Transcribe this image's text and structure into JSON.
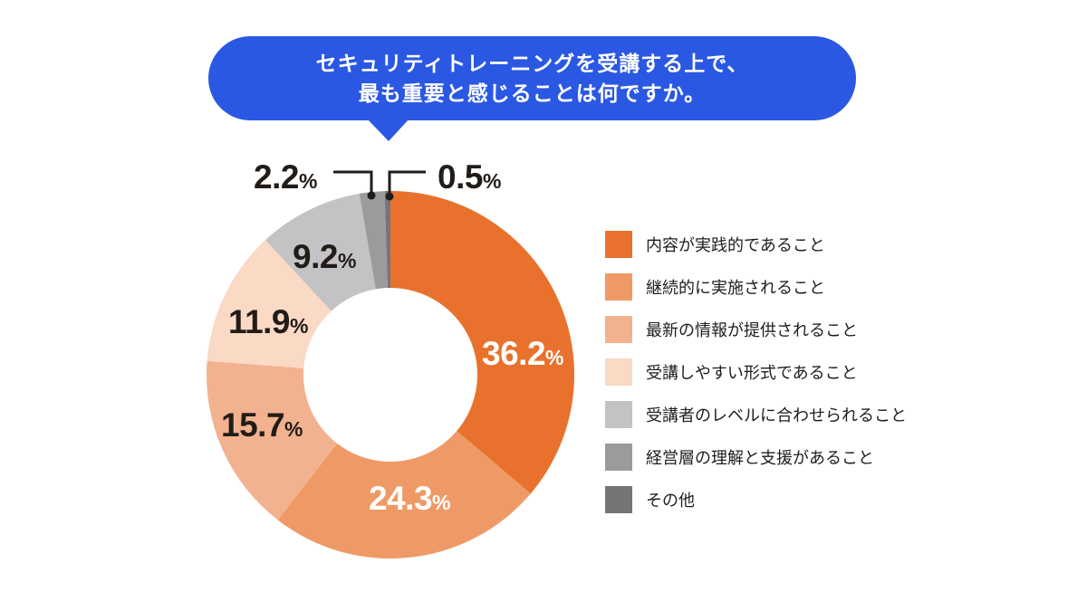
{
  "bubble": {
    "line1": "セキュリティトレーニングを受講する上で、",
    "line2": "最も重要と感じることは何ですか。"
  },
  "colors": {
    "bubble_blue": "#2B58E2",
    "leader_line": "#1D1D1D",
    "label_dark": "#221C18",
    "label_light": "#FFFFFF",
    "background": "#FFFFFF"
  },
  "chart_data": {
    "type": "pie",
    "subtype": "donut",
    "title": "セキュリティトレーニングを受講する上で、最も重要と感じることは何ですか。",
    "legend_position": "right",
    "start_angle": "12-o-clock",
    "direction": "clockwise",
    "percent_sign": "%",
    "total": 100,
    "series": [
      {
        "label": "内容が実践的であること",
        "pct": 36.2,
        "pct_display": "36.2",
        "color": "#E8722D",
        "label_placement": "inside",
        "label_color": "white"
      },
      {
        "label": "継続的に実施されること",
        "pct": 24.3,
        "pct_display": "24.3",
        "color": "#EF9A66",
        "label_placement": "inside",
        "label_color": "white"
      },
      {
        "label": "最新の情報が提供されること",
        "pct": 15.7,
        "pct_display": "15.7",
        "color": "#F3B28F",
        "label_placement": "inside",
        "label_color": "dark"
      },
      {
        "label": "受講しやすい形式であること",
        "pct": 11.9,
        "pct_display": "11.9",
        "color": "#FAD9C5",
        "label_placement": "inside",
        "label_color": "dark"
      },
      {
        "label": "受講者のレベルに合わせられること",
        "pct": 9.2,
        "pct_display": "9.2",
        "color": "#C3C3C5",
        "label_placement": "inside",
        "label_color": "dark"
      },
      {
        "label": "経営層の理解と支援があること",
        "pct": 2.2,
        "pct_display": "2.2",
        "color": "#9B9B9D",
        "label_placement": "callout",
        "label_color": "dark"
      },
      {
        "label": "その他",
        "pct": 0.5,
        "pct_display": "0.5",
        "color": "#757578",
        "label_placement": "callout",
        "label_color": "dark"
      }
    ]
  }
}
